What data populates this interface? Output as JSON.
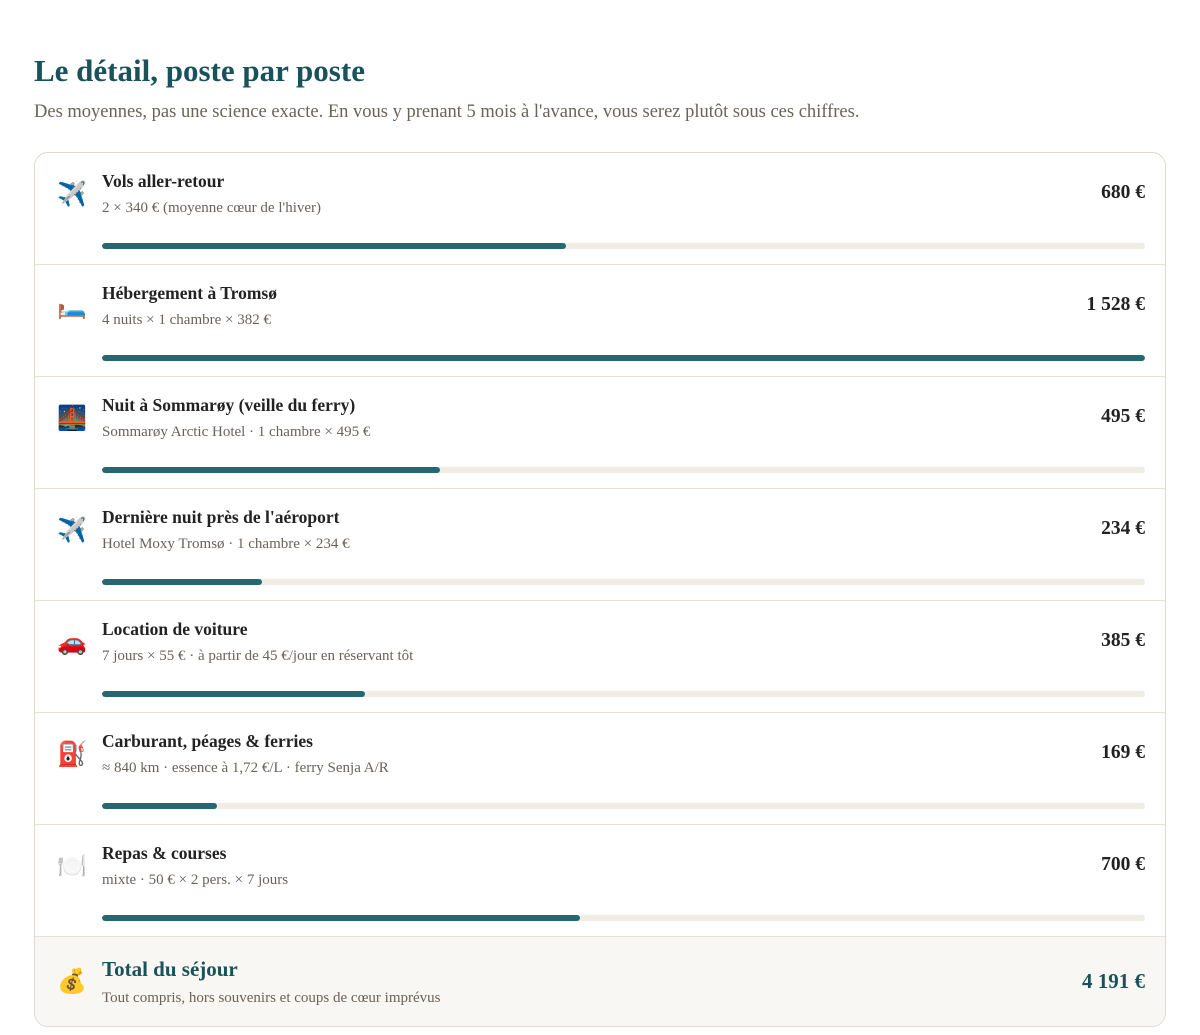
{
  "header": {
    "title": "Le détail, poste par poste",
    "subtitle": "Des moyennes, pas une science exacte. En vous y prenant 5 mois à l'avance, vous serez plutôt sous ces chiffres."
  },
  "colors": {
    "accent": "#19525a",
    "bar_fill": "#1f6b70",
    "bar_track": "#f1ece5",
    "muted_text": "#6b6358"
  },
  "items": [
    {
      "icon": "✈️",
      "icon_name": "airplane-icon",
      "label": "Vols aller-retour",
      "detail": "2 × 340 € (moyenne cœur de l'hiver)",
      "amount": "680 €",
      "value": 680
    },
    {
      "icon": "🛏️",
      "icon_name": "bed-icon",
      "label": "Hébergement à Tromsø",
      "detail": "4 nuits × 1 chambre × 382 €",
      "amount": "1 528 €",
      "value": 1528
    },
    {
      "icon": "🌉",
      "icon_name": "bridge-at-night-icon",
      "label": "Nuit à Sommarøy (veille du ferry)",
      "detail": "Sommarøy Arctic Hotel · 1 chambre × 495 €",
      "amount": "495 €",
      "value": 495
    },
    {
      "icon": "✈️",
      "icon_name": "airplane-icon",
      "label": "Dernière nuit près de l'aéroport",
      "detail": "Hotel Moxy Tromsø · 1 chambre × 234 €",
      "amount": "234 €",
      "value": 234
    },
    {
      "icon": "🚗",
      "icon_name": "car-icon",
      "label": "Location de voiture",
      "detail": "7 jours × 55 € · à partir de 45 €/jour en réservant tôt",
      "amount": "385 €",
      "value": 385
    },
    {
      "icon": "⛽",
      "icon_name": "fuel-pump-icon",
      "label": "Carburant, péages & ferries",
      "detail": "≈ 840 km · essence à 1,72 €/L · ferry Senja A/R",
      "amount": "169 €",
      "value": 169
    },
    {
      "icon": "🍽️",
      "icon_name": "plate-cutlery-icon",
      "label": "Repas & courses",
      "detail": "mixte · 50 € × 2 pers. × 7 jours",
      "amount": "700 €",
      "value": 700
    }
  ],
  "total": {
    "icon": "💰",
    "icon_name": "money-bag-icon",
    "label": "Total du séjour",
    "detail": "Tout compris, hors souvenirs et coups de cœur imprévus",
    "amount": "4 191 €"
  }
}
